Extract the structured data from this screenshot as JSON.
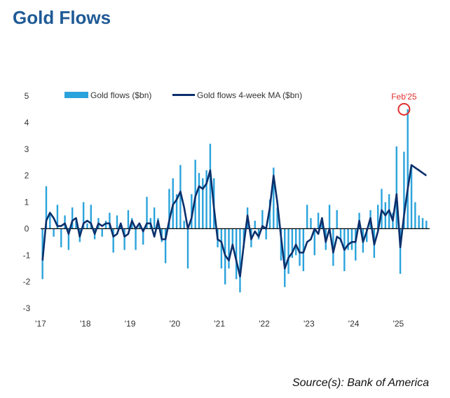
{
  "page": {
    "title": "Gold Flows",
    "source": "Source(s): Bank of America"
  },
  "chart_data": {
    "type": "bar",
    "title": "",
    "xlabel": "",
    "ylabel": "",
    "ylim": [
      -3,
      5
    ],
    "yticks": [
      5,
      4,
      3,
      2,
      1,
      0,
      -1,
      -2,
      -3
    ],
    "x_range": [
      "2017-01",
      "2025-06"
    ],
    "x_tick_labels": [
      "'17",
      "'18",
      "'19",
      "'20",
      "'21",
      "'22",
      "'23",
      "'24",
      "'25"
    ],
    "legend_position": "top-center",
    "grid": false,
    "colors": {
      "bars": "#2aa3dc",
      "line": "#0b2f6b",
      "annotation": "#e03030",
      "title": "#1f5a96"
    },
    "annotation": {
      "label": "Feb'25",
      "x": "2025-02",
      "y": 4.5
    },
    "series": [
      {
        "name": "Gold flows ($bn)",
        "type": "bar",
        "frequency": "monthly",
        "start": "2017-01",
        "values": [
          -1.9,
          1.6,
          0.6,
          -0.3,
          0.9,
          -0.7,
          0.5,
          -0.8,
          0.8,
          0.3,
          -0.5,
          1.0,
          0.2,
          0.9,
          -0.4,
          0.4,
          -0.3,
          0.3,
          0.6,
          -0.9,
          0.5,
          0.1,
          -0.8,
          0.7,
          0.4,
          -0.8,
          0.1,
          -0.6,
          1.2,
          0.4,
          0.8,
          0.4,
          -0.5,
          -1.3,
          1.5,
          1.9,
          1.3,
          2.4,
          0.3,
          -1.5,
          1.3,
          2.6,
          2.1,
          1.9,
          2.2,
          3.2,
          1.9,
          -0.7,
          -1.5,
          -2.1,
          -1.5,
          -0.7,
          -1.9,
          -2.4,
          -0.7,
          0.8,
          -0.7,
          0.3,
          -0.4,
          0.7,
          -0.4,
          1.1,
          2.3,
          0.8,
          -1.2,
          -2.2,
          -1.7,
          -1.1,
          -1.0,
          -1.4,
          -1.6,
          0.9,
          0.4,
          -1.0,
          0.6,
          0.4,
          -0.8,
          0.9,
          -1.4,
          0.7,
          -0.5,
          -1.6,
          -0.8,
          -0.8,
          -1.2,
          0.6,
          -0.9,
          -0.5,
          0.7,
          -1.1,
          0.9,
          1.5,
          1.0,
          1.3,
          0.6,
          3.1,
          -1.7,
          2.9,
          4.5,
          2.4,
          1.0,
          0.5,
          0.4,
          0.3
        ]
      },
      {
        "name": "Gold flows 4-week MA ($bn)",
        "type": "line",
        "frequency": "monthly",
        "start": "2017-01",
        "values": [
          -1.2,
          0.3,
          0.6,
          0.4,
          0.1,
          0.1,
          0.2,
          -0.2,
          0.3,
          0.4,
          -0.3,
          0.2,
          0.3,
          0.2,
          -0.2,
          0.2,
          0.1,
          0.2,
          0.2,
          -0.3,
          -0.2,
          0.2,
          -0.3,
          -0.2,
          0.3,
          0.0,
          0.2,
          -0.1,
          0.2,
          0.2,
          -0.3,
          0.3,
          -0.4,
          -0.4,
          0.3,
          0.9,
          1.1,
          1.4,
          0.8,
          0.0,
          0.4,
          1.2,
          1.6,
          1.5,
          1.7,
          2.2,
          0.8,
          -0.4,
          -0.5,
          -1.0,
          -1.2,
          -0.6,
          -1.2,
          -1.8,
          -0.6,
          0.5,
          -0.4,
          -0.1,
          -0.3,
          0.1,
          0.0,
          0.8,
          2.0,
          1.0,
          -0.3,
          -1.5,
          -1.1,
          -0.9,
          -0.6,
          -0.9,
          -0.9,
          -0.5,
          -0.4,
          0.0,
          -0.2,
          0.4,
          -0.5,
          0.0,
          -0.9,
          -0.3,
          -0.4,
          -0.8,
          -0.6,
          -0.5,
          -0.5,
          0.3,
          -0.5,
          -0.1,
          0.4,
          -0.6,
          -0.1,
          0.7,
          0.5,
          0.7,
          0.3,
          1.3,
          -0.7,
          0.5,
          1.5,
          2.4,
          2.3,
          2.2,
          2.1,
          2.0
        ]
      }
    ]
  }
}
